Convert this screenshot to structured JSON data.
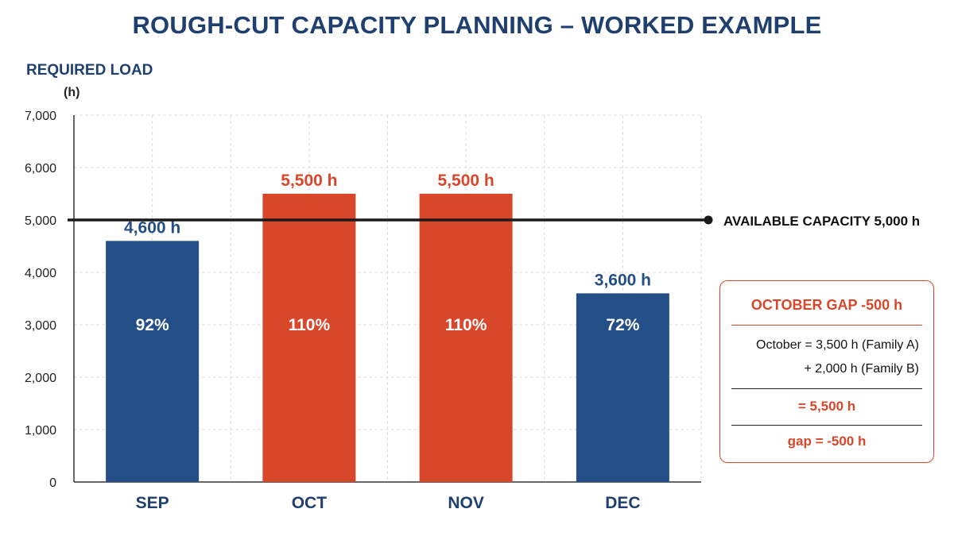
{
  "title": "ROUGH-CUT CAPACITY PLANNING – WORKED EXAMPLE",
  "y_axis_title": "REQUIRED LOAD",
  "y_axis_unit": "(h)",
  "colors": {
    "title": "#1f3f6e",
    "under_capacity": "#244e86",
    "over_capacity": "#d9472b",
    "capacity_line": "#1a1a1a",
    "grid": "#dddddd"
  },
  "chart_data": {
    "type": "bar",
    "categories": [
      "SEP",
      "OCT",
      "NOV",
      "DEC"
    ],
    "values": [
      4600,
      5500,
      5500,
      3600
    ],
    "value_labels": [
      "4,600 h",
      "5,500 h",
      "5,500 h",
      "3,600 h"
    ],
    "utilization_labels": [
      "92%",
      "110%",
      "110%",
      "72%"
    ],
    "over_capacity": [
      false,
      true,
      true,
      false
    ],
    "ylim": [
      0,
      7000
    ],
    "y_ticks": [
      0,
      1000,
      2000,
      3000,
      4000,
      5000,
      6000,
      7000
    ],
    "y_tick_labels": [
      "0",
      "1,000",
      "2,000",
      "3,000",
      "4,000",
      "5,000",
      "6,000",
      "7,000"
    ],
    "grid": true,
    "reference_line": {
      "value": 5000,
      "label": "AVAILABLE CAPACITY 5,000 h"
    }
  },
  "callout": {
    "title": "OCTOBER GAP -500 h",
    "line_a": "October = 3,500 h (Family A)",
    "line_b": "+ 2,000 h (Family B)",
    "result": "= 5,500 h",
    "gap": "gap = -500 h"
  }
}
